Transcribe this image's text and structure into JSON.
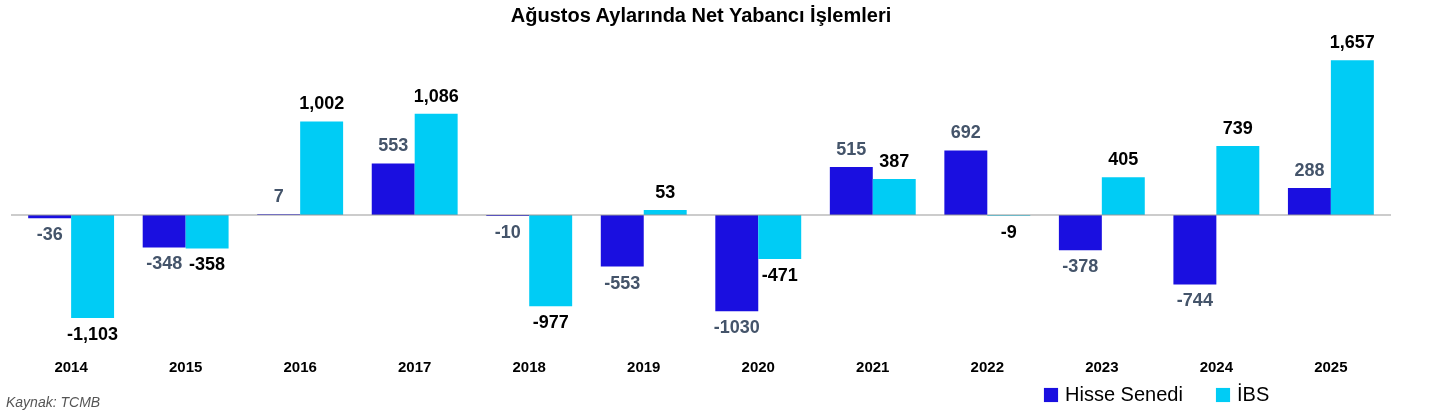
{
  "chart_data": {
    "type": "bar",
    "title": "Ağustos Aylarında Net Yabancı İşlemleri",
    "categories": [
      "2014",
      "2015",
      "2016",
      "2017",
      "2018",
      "2019",
      "2020",
      "2021",
      "2022",
      "2023",
      "2024",
      "2025"
    ],
    "series": [
      {
        "name": "Hisse Senedi",
        "color": "#1a0fe0",
        "values": [
          -36,
          -348,
          7,
          553,
          -10,
          -553,
          -1030,
          515,
          692,
          -378,
          -744,
          288
        ],
        "value_labels": [
          "-36",
          "-348",
          "7",
          "553",
          "-10",
          "-553",
          "-1030",
          "515",
          "692",
          "-378",
          "-744",
          "288"
        ]
      },
      {
        "name": "İBS",
        "color": "#00ccf5",
        "values": [
          -1103,
          -358,
          1002,
          1086,
          -977,
          53,
          -471,
          387,
          -9,
          405,
          739,
          1657
        ],
        "value_labels": [
          "-1,103",
          "-358",
          "1,002",
          "1,086",
          "-977",
          "53",
          "-471",
          "387",
          "-9",
          "405",
          "739",
          "1,657"
        ]
      }
    ],
    "legend": "bottom right",
    "annotations": [
      "Kaynak: TCMB"
    ]
  }
}
